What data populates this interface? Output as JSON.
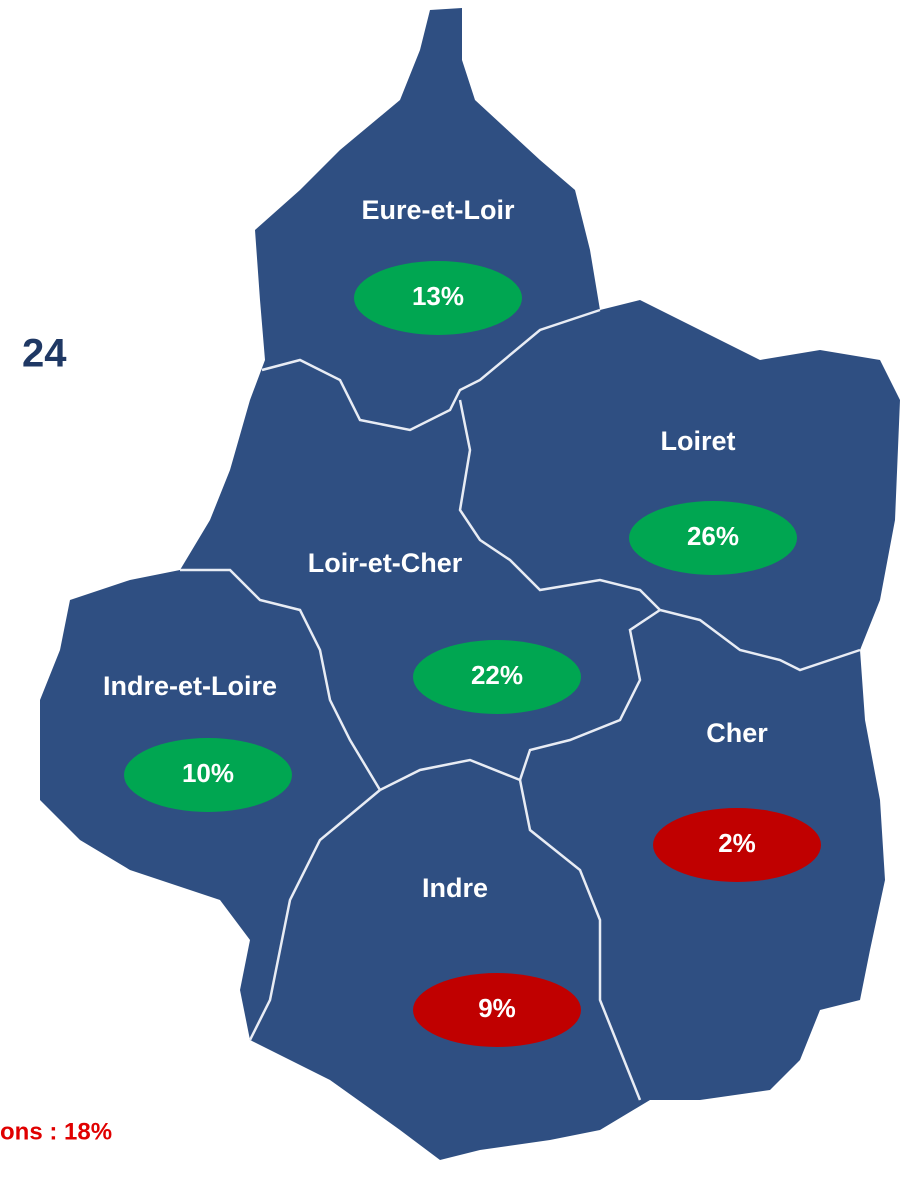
{
  "fragments": {
    "year": "24",
    "note": "ons : 18%"
  },
  "regions": [
    {
      "name": "Eure-et-Loir",
      "value": "13%",
      "color": "#00a651"
    },
    {
      "name": "Loiret",
      "value": "26%",
      "color": "#00a651"
    },
    {
      "name": "Loir-et-Cher",
      "value": "22%",
      "color": "#00a651"
    },
    {
      "name": "Indre-et-Loire",
      "value": "10%",
      "color": "#00a651"
    },
    {
      "name": "Cher",
      "value": "2%",
      "color": "#c00000"
    },
    {
      "name": "Indre",
      "value": "9%",
      "color": "#c00000"
    }
  ]
}
